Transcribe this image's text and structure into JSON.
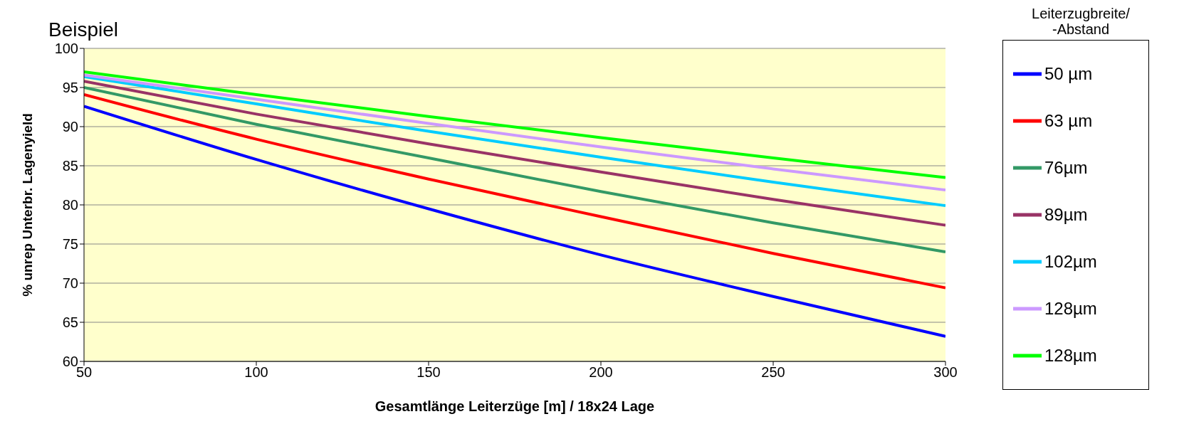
{
  "chart_data": {
    "type": "line",
    "title": "Beispiel",
    "xlabel": "Gesamtlänge Leiterzüge [m] / 18x24 Lage",
    "ylabel": "% unrep Unterbr. Lagenyield",
    "legend_title": "Leiterzugbreite/\n-Abstand",
    "x": [
      50,
      100,
      150,
      200,
      250,
      300
    ],
    "series": [
      {
        "name": "50 µm",
        "color": "#0000ff",
        "values": [
          92.6,
          85.8,
          79.5,
          73.6,
          68.3,
          63.2
        ]
      },
      {
        "name": "63 µm",
        "color": "#ff0000",
        "values": [
          94.1,
          88.4,
          83.3,
          78.5,
          73.8,
          69.4
        ]
      },
      {
        "name": "76µm",
        "color": "#339966",
        "values": [
          95.0,
          90.3,
          86.0,
          81.7,
          77.7,
          74.0
        ]
      },
      {
        "name": "89µm",
        "color": "#993366",
        "values": [
          95.8,
          91.6,
          87.8,
          84.2,
          80.7,
          77.4
        ]
      },
      {
        "name": "102µm",
        "color": "#00ccff",
        "values": [
          96.4,
          92.9,
          89.4,
          86.1,
          82.9,
          79.9
        ]
      },
      {
        "name": "128µm",
        "color": "#cc99ff",
        "values": [
          96.6,
          93.5,
          90.4,
          87.4,
          84.6,
          81.9
        ]
      },
      {
        "name": "128µm",
        "color": "#00ff00",
        "values": [
          97.0,
          94.1,
          91.3,
          88.6,
          86.0,
          83.5
        ]
      }
    ],
    "xlim": [
      50,
      300
    ],
    "xticks": [
      50,
      100,
      150,
      200,
      250,
      300
    ],
    "ylim": [
      60,
      100
    ],
    "yticks": [
      60,
      65,
      70,
      75,
      80,
      85,
      90,
      95,
      100
    ],
    "grid": "y",
    "legend": "right",
    "marker": "none",
    "line_style": "solid"
  }
}
